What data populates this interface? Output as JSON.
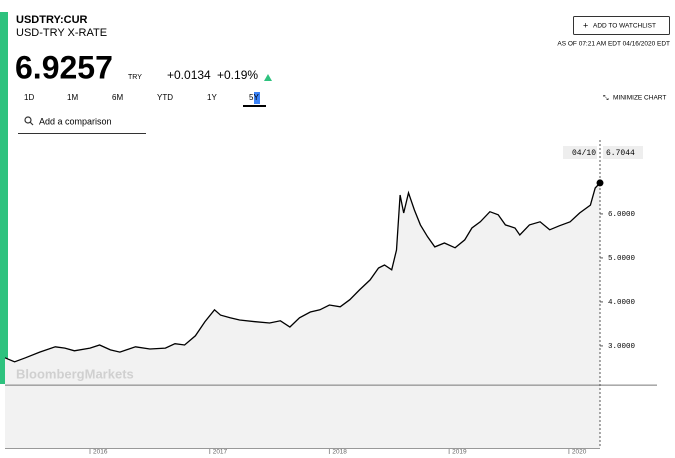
{
  "header": {
    "ticker": "USDTRY:CUR",
    "name": "USD-TRY X-RATE",
    "price": "6.9257",
    "currency": "TRY",
    "change": "+0.0134",
    "change_pct": "+0.19%",
    "watchlist": "ADD TO WATCHLIST",
    "as_of": "AS OF 07:21 AM EDT 04/16/2020 EDT"
  },
  "ranges": [
    "1D",
    "1M",
    "6M",
    "YTD",
    "1Y",
    "5Y"
  ],
  "active_range": "5Y",
  "minimize": "MINIMIZE CHART",
  "comparison_placeholder": "Add a comparison",
  "watermark": "BloombergMarkets",
  "chart_data": {
    "type": "line",
    "color": "#000000",
    "area_color": "#f2f2f2",
    "x": [
      2015.29,
      2015.37,
      2015.46,
      2015.58,
      2015.71,
      2015.79,
      2015.87,
      2016.0,
      2016.08,
      2016.17,
      2016.25,
      2016.38,
      2016.5,
      2016.63,
      2016.71,
      2016.79,
      2016.88,
      2016.96,
      2017.04,
      2017.09,
      2017.17,
      2017.25,
      2017.38,
      2017.5,
      2017.59,
      2017.67,
      2017.75,
      2017.84,
      2017.92,
      2018.0,
      2018.09,
      2018.17,
      2018.25,
      2018.34,
      2018.41,
      2018.46,
      2018.52,
      2018.56,
      2018.59,
      2018.62,
      2018.66,
      2018.71,
      2018.76,
      2018.82,
      2018.88,
      2018.96,
      2019.05,
      2019.13,
      2019.19,
      2019.26,
      2019.34,
      2019.41,
      2019.47,
      2019.55,
      2019.59,
      2019.67,
      2019.76,
      2019.84,
      2019.92,
      2020.01,
      2020.09,
      2020.18,
      2020.22,
      2020.26
    ],
    "values": [
      2.73,
      2.64,
      2.73,
      2.86,
      2.98,
      2.95,
      2.89,
      2.95,
      3.02,
      2.91,
      2.86,
      2.98,
      2.93,
      2.95,
      3.05,
      3.02,
      3.23,
      3.55,
      3.82,
      3.7,
      3.64,
      3.59,
      3.55,
      3.52,
      3.57,
      3.43,
      3.64,
      3.77,
      3.82,
      3.93,
      3.89,
      4.05,
      4.27,
      4.5,
      4.77,
      4.84,
      4.73,
      5.18,
      6.43,
      6.02,
      6.48,
      6.09,
      5.75,
      5.48,
      5.25,
      5.34,
      5.23,
      5.41,
      5.68,
      5.82,
      6.05,
      5.98,
      5.75,
      5.68,
      5.52,
      5.75,
      5.82,
      5.64,
      5.73,
      5.82,
      6.02,
      6.2,
      6.59,
      6.7044
    ],
    "last_date": "04/10",
    "baseline": 2.11,
    "xlim": [
      2015.29,
      2020.26
    ],
    "xticks": [
      2016,
      2017,
      2018,
      2019,
      2020
    ],
    "ylim": [
      0.68,
      7.68
    ],
    "yticks": [
      {
        "value": 3,
        "label": "3.0000"
      },
      {
        "value": 4,
        "label": "4.0000"
      },
      {
        "value": 5,
        "label": "5.0000"
      },
      {
        "value": 6,
        "label": "6.0000"
      }
    ]
  }
}
